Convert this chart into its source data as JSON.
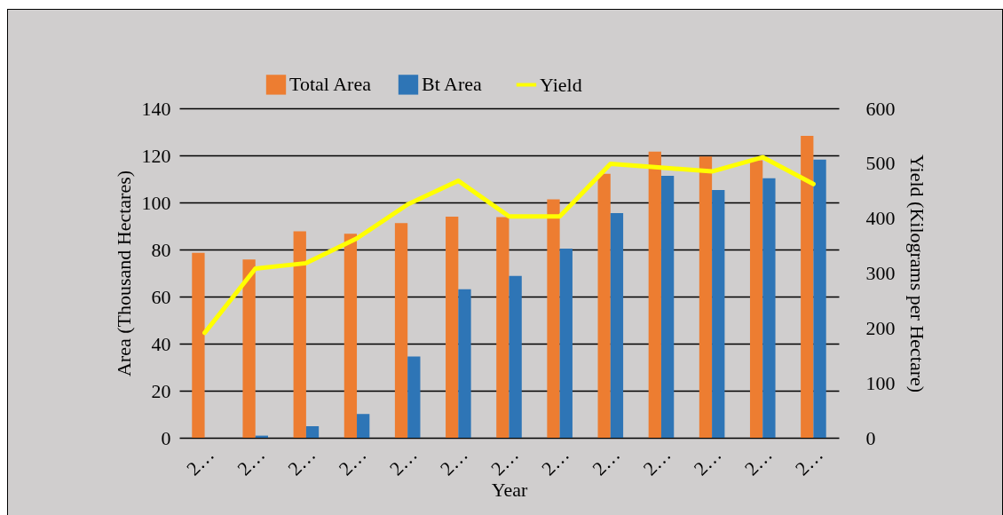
{
  "chart_data": {
    "type": "bar",
    "xlabel": "Year",
    "ylabel": "Area (Thousand Hectares)",
    "y2label": "Yield (Kilograms per Hectare)",
    "categories": [
      "2…",
      "2…",
      "2…",
      "2…",
      "2…",
      "2…",
      "2…",
      "2…",
      "2…",
      "2…",
      "2…",
      "2…",
      "2…"
    ],
    "series": [
      {
        "name": "Total Area",
        "color": "#ed7d31",
        "values": [
          78.6,
          75.8,
          87.7,
          86.7,
          91.2,
          94.0,
          93.8,
          101.3,
          112.2,
          121.6,
          119.5,
          117.9,
          128.3
        ]
      },
      {
        "name": "Bt Area",
        "color": "#2e75b6",
        "values": [
          0,
          0.9,
          4.9,
          10.1,
          34.5,
          63.1,
          68.8,
          80.4,
          95.5,
          111.3,
          105.3,
          110.3,
          118.2
        ]
      },
      {
        "name": "Yield",
        "type": "line",
        "axis": "y2",
        "color": "#ffff00",
        "values": [
          191,
          308,
          318,
          363,
          425,
          468,
          403,
          403,
          499,
          492,
          485,
          511,
          462
        ]
      }
    ],
    "ylim": [
      0,
      140
    ],
    "yticks": [
      0,
      20,
      40,
      60,
      80,
      100,
      120,
      140
    ],
    "y2lim": [
      0,
      600
    ],
    "y2ticks": [
      0,
      100,
      200,
      300,
      400,
      500,
      600
    ],
    "grid": "y",
    "legend": "top",
    "marker": "none",
    "line_style": "solid"
  }
}
